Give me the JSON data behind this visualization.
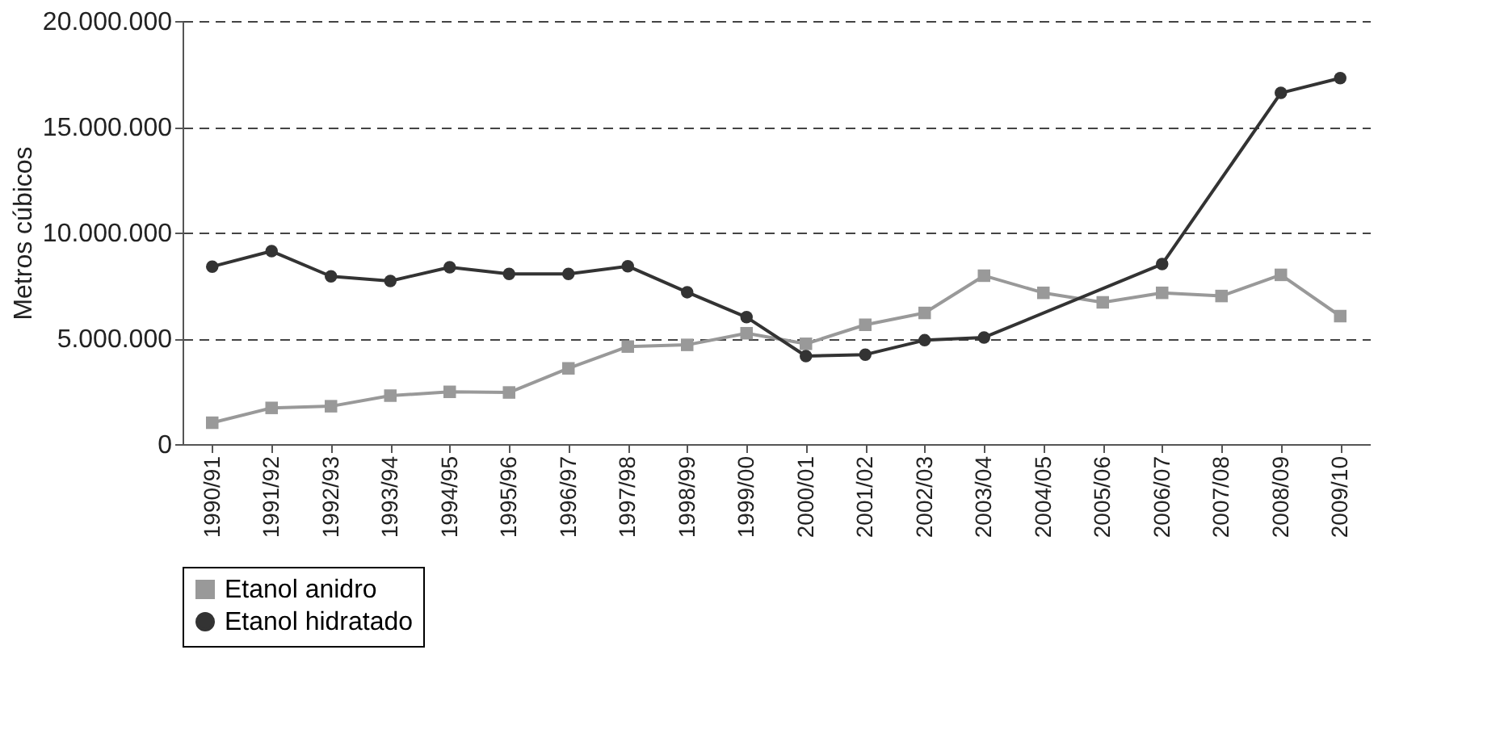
{
  "chart_data": {
    "type": "line",
    "ylabel": "Metros cúbicos",
    "categories": [
      "1990/91",
      "1991/92",
      "1992/93",
      "1993/94",
      "1994/95",
      "1995/96",
      "1996/97",
      "1997/98",
      "1998/99",
      "1999/00",
      "2000/01",
      "2001/02",
      "2002/03",
      "2003/04",
      "2004/05",
      "2005/06",
      "2006/07",
      "2007/08",
      "2008/09",
      "2009/10"
    ],
    "series": [
      {
        "name": "Etanol anidro",
        "color": "#999999",
        "marker": "square",
        "values": [
          1010000,
          1710000,
          1790000,
          2290000,
          2470000,
          2440000,
          3580000,
          4610000,
          4690000,
          5240000,
          4740000,
          5640000,
          6200000,
          7960000,
          7150000,
          6700000,
          7150000,
          7000000,
          8000000,
          6050000
        ]
      },
      {
        "name": "Etanol hidratado",
        "color": "#333333",
        "marker": "circle",
        "values": [
          8390000,
          9120000,
          7930000,
          7710000,
          8360000,
          8040000,
          8040000,
          8410000,
          7180000,
          6000000,
          4160000,
          4230000,
          4910000,
          5040000,
          null,
          null,
          8510000,
          null,
          16600000,
          17300000
        ]
      }
    ],
    "ylim": [
      0,
      20000000
    ],
    "yticks": [
      {
        "value": 0,
        "label": "0"
      },
      {
        "value": 5000000,
        "label": "5.000.000"
      },
      {
        "value": 10000000,
        "label": "10.000.000"
      },
      {
        "value": 15000000,
        "label": "15.000.000"
      },
      {
        "value": 20000000,
        "label": "20.000.000"
      }
    ],
    "grid": "y",
    "line_style": "solid",
    "legend": "bottom"
  }
}
